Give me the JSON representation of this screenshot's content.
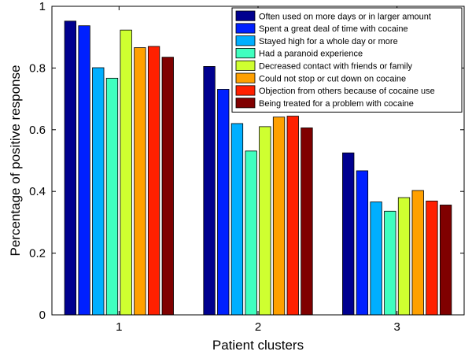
{
  "chart_data": {
    "type": "bar",
    "xlabel": "Patient clusters",
    "ylabel": "Percentage of positive response",
    "categories": [
      "1",
      "2",
      "3"
    ],
    "ylim": [
      0,
      1
    ],
    "yticks": [
      "0",
      "0.2",
      "0.4",
      "0.6",
      "0.8",
      "1"
    ],
    "legend_position": "top-right",
    "grid": false,
    "series": [
      {
        "name": "Often used on more days or in larger amount",
        "color": "#00008F",
        "values": [
          0.952,
          0.805,
          0.525
        ]
      },
      {
        "name": "Spent a great deal of time with cocaine",
        "color": "#0020FF",
        "values": [
          0.937,
          0.731,
          0.467
        ]
      },
      {
        "name": "Stayed high for a whole day or more",
        "color": "#00AFFF",
        "values": [
          0.801,
          0.62,
          0.366
        ]
      },
      {
        "name": "Had a paranoid experience",
        "color": "#40FFBF",
        "values": [
          0.767,
          0.531,
          0.336
        ]
      },
      {
        "name": "Decreased contact with friends or family",
        "color": "#CFFF30",
        "values": [
          0.923,
          0.61,
          0.38
        ]
      },
      {
        "name": "Could not stop or cut down on cocaine",
        "color": "#FFA000",
        "values": [
          0.866,
          0.641,
          0.403
        ]
      },
      {
        "name": "Objection from others because of cocaine use",
        "color": "#FF2000",
        "values": [
          0.87,
          0.644,
          0.369
        ]
      },
      {
        "name": "Being treated for a problem with cocaine",
        "color": "#800000",
        "values": [
          0.835,
          0.606,
          0.356
        ]
      }
    ]
  }
}
